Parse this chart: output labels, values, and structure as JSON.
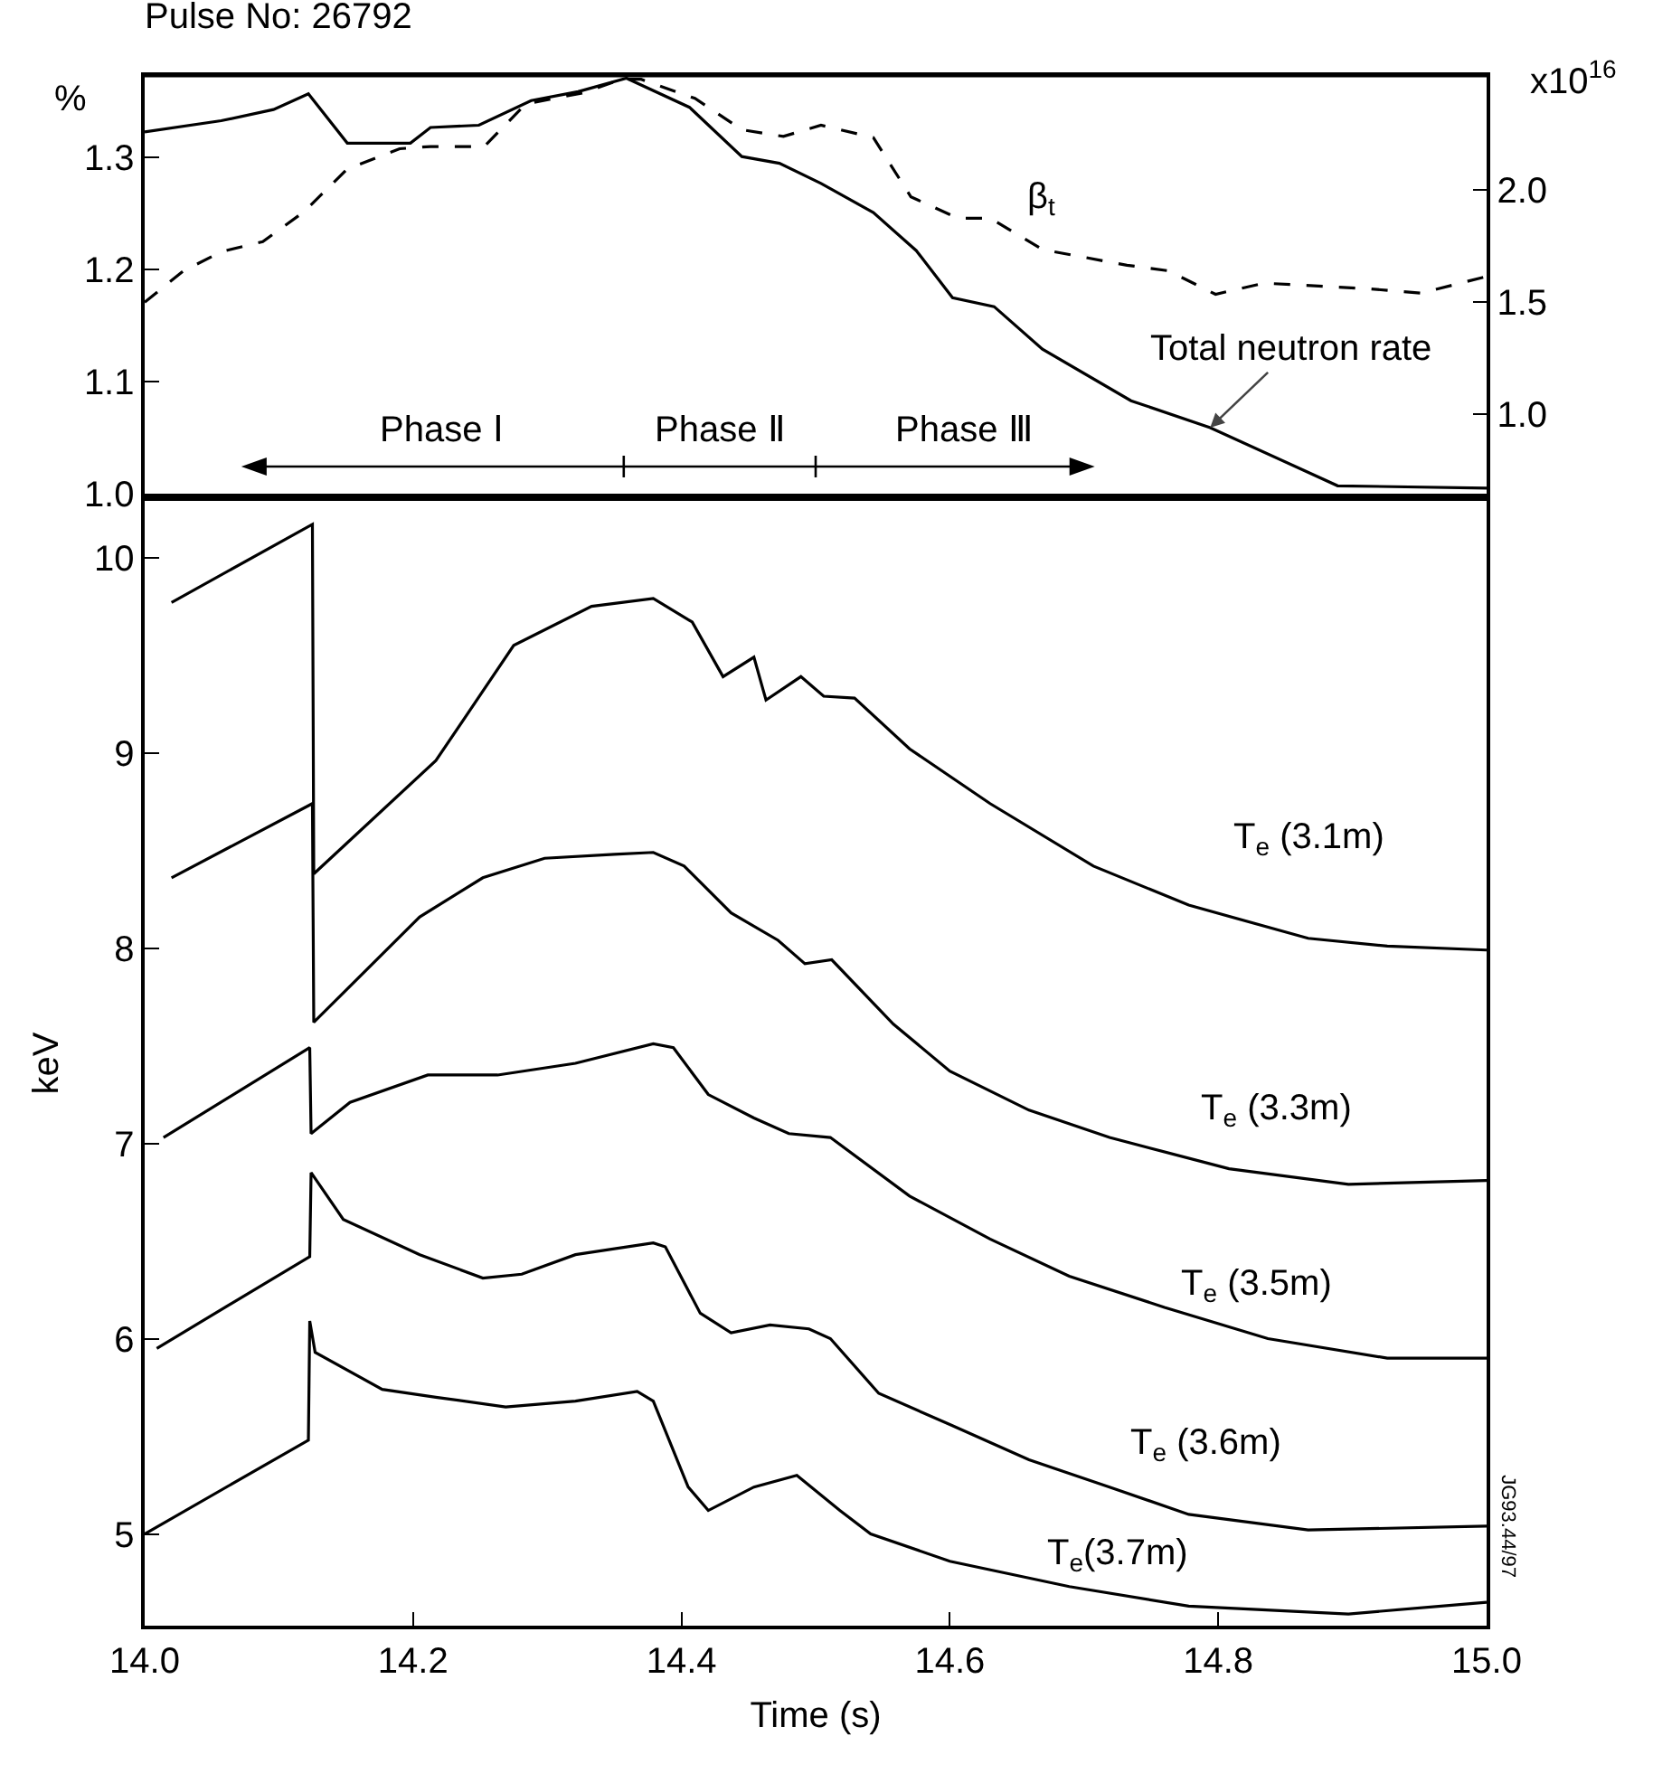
{
  "chart_data": [
    {
      "type": "line",
      "title": "Pulse No: 26792",
      "ylabel": "%",
      "y2label": "x10$^{16}$",
      "xlim": [
        14,
        15
      ],
      "ylim": [
        1.0,
        1.373
      ],
      "yticks": [
        {
          "value": 1,
          "label": "1.0"
        },
        1.1,
        1.2,
        1.3
      ],
      "y2lim": [
        0.645,
        2.51
      ],
      "y2ticks": [
        {
          "value": 1,
          "label": "1.0"
        },
        1.5,
        {
          "value": 2,
          "label": "2.0"
        }
      ],
      "tick_labels": "y",
      "grid": false,
      "legend": false,
      "marker": "none",
      "annotations": [
        "Phase Ⅰ",
        "Phase Ⅱ",
        "Phase Ⅲ"
      ],
      "series": [
        {
          "name": "β$_{t}$",
          "color": "#000000",
          "line_style": "dashed",
          "x": [
            14.0,
            14.029,
            14.057,
            14.088,
            14.119,
            14.151,
            14.19,
            14.213,
            14.253,
            14.284,
            14.327,
            14.355,
            14.37,
            14.41,
            14.445,
            14.476,
            14.504,
            14.543,
            14.571,
            14.606,
            14.63,
            14.669,
            14.732,
            14.763,
            14.798,
            14.834,
            14.912,
            14.951,
            15.0
          ],
          "values": [
            1.171,
            1.199,
            1.216,
            1.225,
            1.252,
            1.29,
            1.308,
            1.31,
            1.31,
            1.348,
            1.358,
            1.37,
            1.37,
            1.353,
            1.325,
            1.319,
            1.329,
            1.318,
            1.265,
            1.246,
            1.246,
            1.218,
            1.204,
            1.199,
            1.178,
            1.188,
            1.183,
            1.179,
            1.194
          ]
        },
        {
          "name": "Total neutron rate",
          "color": "#000000",
          "line_style": "solid",
          "axis": "y2",
          "x": [
            14.0,
            14.057,
            14.096,
            14.122,
            14.151,
            14.198,
            14.213,
            14.249,
            14.288,
            14.323,
            14.359,
            14.406,
            14.445,
            14.473,
            14.504,
            14.543,
            14.575,
            14.602,
            14.633,
            14.669,
            14.735,
            14.794,
            14.889,
            15.0
          ],
          "values": [
            2.26,
            2.31,
            2.36,
            2.43,
            2.21,
            2.21,
            2.28,
            2.29,
            2.4,
            2.44,
            2.5,
            2.37,
            2.15,
            2.12,
            2.03,
            1.9,
            1.73,
            1.52,
            1.48,
            1.29,
            1.06,
            0.94,
            0.68,
            0.67
          ]
        }
      ]
    },
    {
      "type": "line",
      "xlabel": "Time (s)",
      "ylabel": "keV",
      "xlim": [
        14,
        15
      ],
      "xticks": [
        {
          "value": 14,
          "label": "14.0"
        },
        14.2,
        14.4,
        14.6,
        14.8,
        {
          "value": 15,
          "label": "15.0"
        }
      ],
      "ylim": [
        4.53,
        10.29
      ],
      "yticks": [
        5,
        6,
        7,
        8,
        9,
        10
      ],
      "grid": false,
      "legend": false,
      "marker": "none",
      "line_style": "solid",
      "annotations": [
        "JG93.44/97"
      ],
      "series": [
        {
          "name": "T$_{e}$ (3.1m)",
          "color": "#000000",
          "x": [
            14.02,
            14.125,
            14.126,
            14.217,
            14.275,
            14.333,
            14.379,
            14.408,
            14.431,
            14.454,
            14.463,
            14.489,
            14.506,
            14.529,
            14.57,
            14.63,
            14.707,
            14.778,
            14.867,
            14.926,
            15.0
          ],
          "values": [
            9.77,
            10.17,
            8.38,
            8.96,
            9.55,
            9.75,
            9.79,
            9.67,
            9.39,
            9.49,
            9.27,
            9.39,
            9.29,
            9.28,
            9.02,
            8.74,
            8.42,
            8.22,
            8.05,
            8.01,
            7.99
          ]
        },
        {
          "name": "T$_{e}$ (3.3m)",
          "color": "#000000",
          "x": [
            14.02,
            14.125,
            14.126,
            14.205,
            14.252,
            14.298,
            14.35,
            14.379,
            14.402,
            14.437,
            14.472,
            14.492,
            14.512,
            14.558,
            14.6,
            14.659,
            14.719,
            14.808,
            14.897,
            15.0
          ],
          "values": [
            8.36,
            8.74,
            7.62,
            8.16,
            8.36,
            8.46,
            8.48,
            8.49,
            8.42,
            8.18,
            8.04,
            7.92,
            7.94,
            7.61,
            7.37,
            7.17,
            7.03,
            6.87,
            6.79,
            6.81
          ]
        },
        {
          "name": "T$_{e}$ (3.5m)",
          "color": "#000000",
          "x": [
            14.014,
            14.123,
            14.124,
            14.153,
            14.211,
            14.263,
            14.321,
            14.379,
            14.394,
            14.42,
            14.454,
            14.48,
            14.511,
            14.57,
            14.63,
            14.689,
            14.76,
            14.837,
            14.926,
            15.0
          ],
          "values": [
            7.03,
            7.49,
            7.05,
            7.21,
            7.35,
            7.35,
            7.41,
            7.51,
            7.49,
            7.25,
            7.13,
            7.05,
            7.03,
            6.73,
            6.51,
            6.32,
            6.16,
            6.0,
            5.9,
            5.9
          ]
        },
        {
          "name": "T$_{e}$ (3.6m)",
          "color": "#000000",
          "x": [
            14.009,
            14.123,
            14.124,
            14.148,
            14.205,
            14.252,
            14.281,
            14.321,
            14.379,
            14.388,
            14.414,
            14.437,
            14.466,
            14.495,
            14.511,
            14.547,
            14.6,
            14.659,
            14.719,
            14.778,
            14.867,
            15.0
          ],
          "values": [
            5.95,
            6.42,
            6.85,
            6.61,
            6.43,
            6.31,
            6.33,
            6.43,
            6.49,
            6.47,
            6.13,
            6.03,
            6.07,
            6.05,
            6.0,
            5.72,
            5.56,
            5.38,
            5.24,
            5.1,
            5.02,
            5.04
          ]
        },
        {
          "name": "T$_{e}$(3.7m)",
          "color": "#000000",
          "x": [
            14.0,
            14.122,
            14.123,
            14.127,
            14.177,
            14.217,
            14.269,
            14.321,
            14.367,
            14.379,
            14.405,
            14.42,
            14.454,
            14.486,
            14.518,
            14.541,
            14.6,
            14.689,
            14.778,
            14.897,
            15.0
          ],
          "values": [
            5.0,
            5.48,
            6.09,
            5.93,
            5.74,
            5.7,
            5.65,
            5.68,
            5.73,
            5.68,
            5.24,
            5.12,
            5.24,
            5.3,
            5.12,
            5.0,
            4.86,
            4.73,
            4.63,
            4.59,
            4.65
          ]
        }
      ]
    }
  ]
}
